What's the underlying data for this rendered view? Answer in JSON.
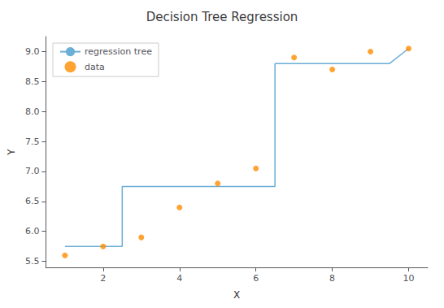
{
  "chart_data": {
    "type": "scatter",
    "title": "Decision Tree Regression",
    "xlabel": "X",
    "ylabel": "Y",
    "series": [
      {
        "name": "regression tree",
        "type": "line",
        "color": "#6baed6",
        "x": [
          1,
          2.5,
          2.5,
          3.5,
          6.5,
          6.5,
          9.5,
          10
        ],
        "values": [
          5.75,
          5.75,
          6.75,
          6.75,
          6.75,
          8.8,
          8.8,
          9.05
        ]
      },
      {
        "name": "data",
        "type": "scatter",
        "color": "darkorange",
        "x": [
          1,
          2,
          3,
          4,
          5,
          6,
          7,
          8,
          9,
          10
        ],
        "values": [
          5.6,
          5.75,
          5.9,
          6.4,
          6.8,
          7.05,
          8.9,
          8.7,
          9.0,
          9.05
        ]
      }
    ],
    "xlim": [
      0.5,
      10.5
    ],
    "ylim": [
      5.4,
      9.25
    ],
    "xticks": [
      2,
      4,
      6,
      8,
      10
    ],
    "yticks": [
      5.5,
      {
        "value": 6,
        "label": "6.0"
      },
      6.5,
      {
        "value": 7,
        "label": "7.0"
      },
      7.5,
      {
        "value": 8,
        "label": "8.0"
      },
      8.5,
      {
        "value": 9,
        "label": "9.0"
      }
    ],
    "grid": false,
    "legend": "upper left"
  }
}
